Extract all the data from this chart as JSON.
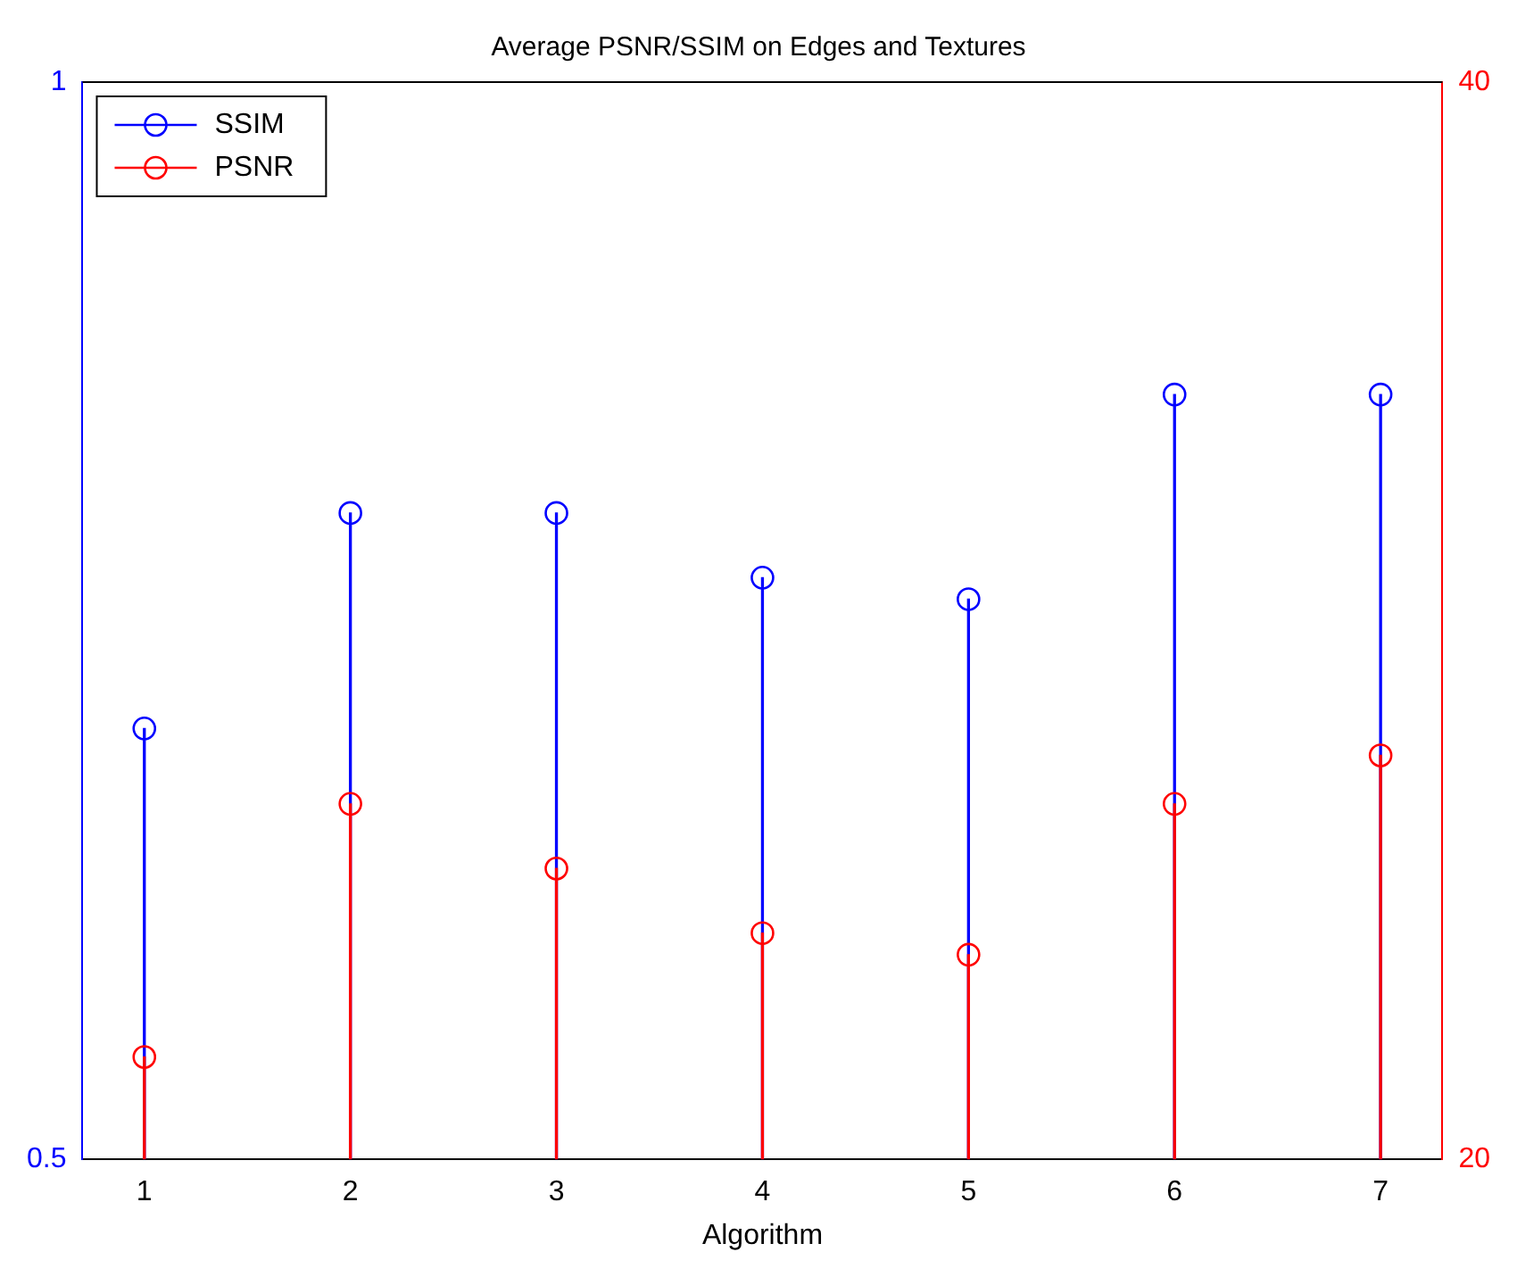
{
  "chart_data": {
    "type": "lollipop",
    "title": "Average PSNR/SSIM on Edges and Textures",
    "xlabel": "Algorithm",
    "x": [
      1,
      2,
      3,
      4,
      5,
      6,
      7
    ],
    "xlim": [
      0.7,
      7.3
    ],
    "xticks": [
      1,
      2,
      3,
      4,
      5,
      6,
      7
    ],
    "ylim": [
      0.5,
      1
    ],
    "yticks": [
      0.5,
      1
    ],
    "y2lim": [
      20,
      40
    ],
    "y2ticks": [
      20,
      40
    ],
    "marker": "circle",
    "legend": "top left",
    "grid": false,
    "series": [
      {
        "name": "SSIM",
        "color": "#0000ff",
        "values": [
          0.7,
          0.8,
          0.8,
          0.77,
          0.76,
          0.855,
          0.855
        ]
      },
      {
        "name": "PSNR",
        "color": "#ff0000",
        "axis": "y2",
        "values": [
          21.9,
          26.6,
          25.4,
          24.2,
          23.8,
          26.6,
          27.5
        ]
      }
    ]
  }
}
